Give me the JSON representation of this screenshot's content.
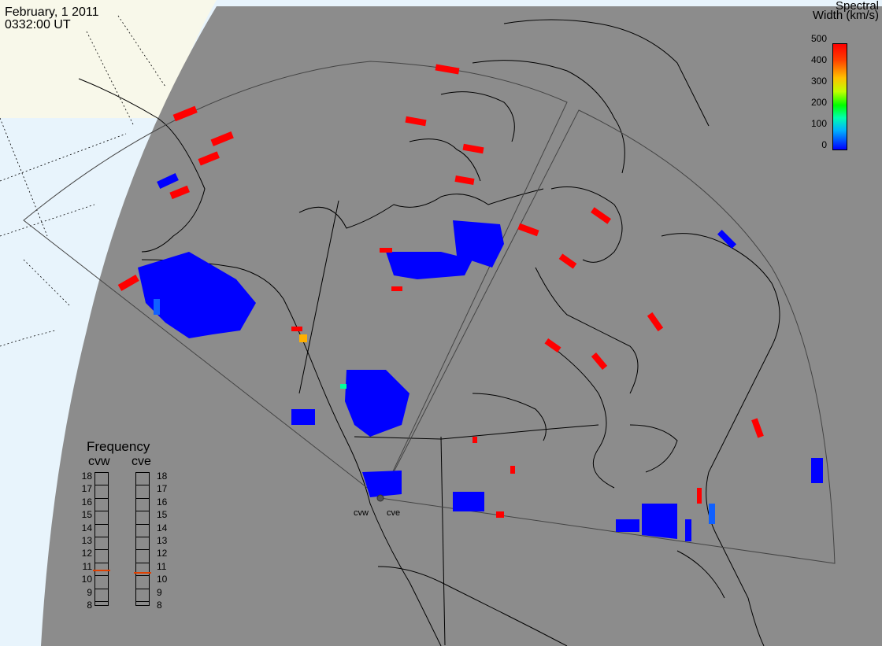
{
  "header": {
    "date": "February, 1 2011",
    "time": "0332:00 UT"
  },
  "colorbar": {
    "title_line1": "Spectral",
    "title_line2": "Width (km/s)",
    "ticks": [
      "500",
      "400",
      "300",
      "200",
      "100",
      "0"
    ],
    "min": 0,
    "max": 500
  },
  "frequency": {
    "title": "Frequency",
    "radars": [
      "cvw",
      "cve"
    ],
    "scale": [
      "18",
      "17",
      "16",
      "15",
      "14",
      "13",
      "12",
      "11",
      "10",
      "9",
      "8"
    ],
    "values_mhz": {
      "cvw": 10.8,
      "cve": 10.6
    }
  },
  "sites": [
    "cvw",
    "cve"
  ],
  "colors": {
    "ocean_land_projection": "#8c8c8c",
    "outside_fov": "#e8f4fc",
    "echo_low": "#0000ff",
    "echo_high": "#ff0000"
  }
}
